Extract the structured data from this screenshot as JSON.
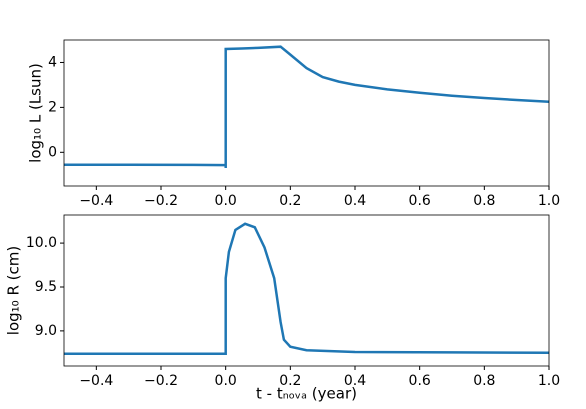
{
  "chart_data": [
    {
      "type": "line",
      "y_label": "log₁₀ L (Lsun)",
      "color": "#1f77b4",
      "x": [
        -0.5,
        -0.3,
        -0.1,
        0.0,
        0.0,
        0.0,
        0.05,
        0.1,
        0.17,
        0.2,
        0.25,
        0.3,
        0.35,
        0.4,
        0.5,
        0.6,
        0.7,
        0.8,
        0.9,
        1.0
      ],
      "values": [
        -0.55,
        -0.55,
        -0.56,
        -0.57,
        -0.7,
        4.6,
        4.62,
        4.65,
        4.7,
        4.35,
        3.75,
        3.35,
        3.15,
        3.0,
        2.8,
        2.65,
        2.52,
        2.42,
        2.33,
        2.25
      ],
      "xlim": [
        -0.5,
        1.0
      ],
      "ylim": [
        -1.5,
        5.0
      ],
      "xticks": [
        {
          "value": -0.4,
          "label": "−0.4"
        },
        {
          "value": -0.2,
          "label": "−0.2"
        },
        {
          "value": 0,
          "label": "0.0"
        },
        0.2,
        0.4,
        0.6,
        0.8,
        {
          "value": 1,
          "label": "1.0"
        }
      ],
      "yticks": [
        0,
        2,
        4
      ]
    },
    {
      "type": "line",
      "x_label": "t - tₙₒᵥₐ (year)",
      "y_label": "log₁₀ R (cm)",
      "color": "#1f77b4",
      "x": [
        -0.5,
        -0.2,
        0.0,
        0.0,
        0.01,
        0.03,
        0.06,
        0.09,
        0.12,
        0.15,
        0.17,
        0.18,
        0.2,
        0.25,
        0.4,
        0.7,
        1.0
      ],
      "values": [
        8.74,
        8.74,
        8.74,
        9.6,
        9.9,
        10.15,
        10.22,
        10.18,
        9.95,
        9.6,
        9.1,
        8.9,
        8.82,
        8.78,
        8.76,
        8.755,
        8.75
      ],
      "xlim": [
        -0.5,
        1.0
      ],
      "ylim": [
        8.6,
        10.32
      ],
      "xticks": [
        {
          "value": -0.4,
          "label": "−0.4"
        },
        {
          "value": -0.2,
          "label": "−0.2"
        },
        {
          "value": 0,
          "label": "0.0"
        },
        0.2,
        0.4,
        0.6,
        0.8,
        {
          "value": 1,
          "label": "1.0"
        }
      ],
      "yticks": [
        {
          "value": 9,
          "label": "9.0"
        },
        9.5,
        {
          "value": 10,
          "label": "10.0"
        }
      ]
    }
  ]
}
